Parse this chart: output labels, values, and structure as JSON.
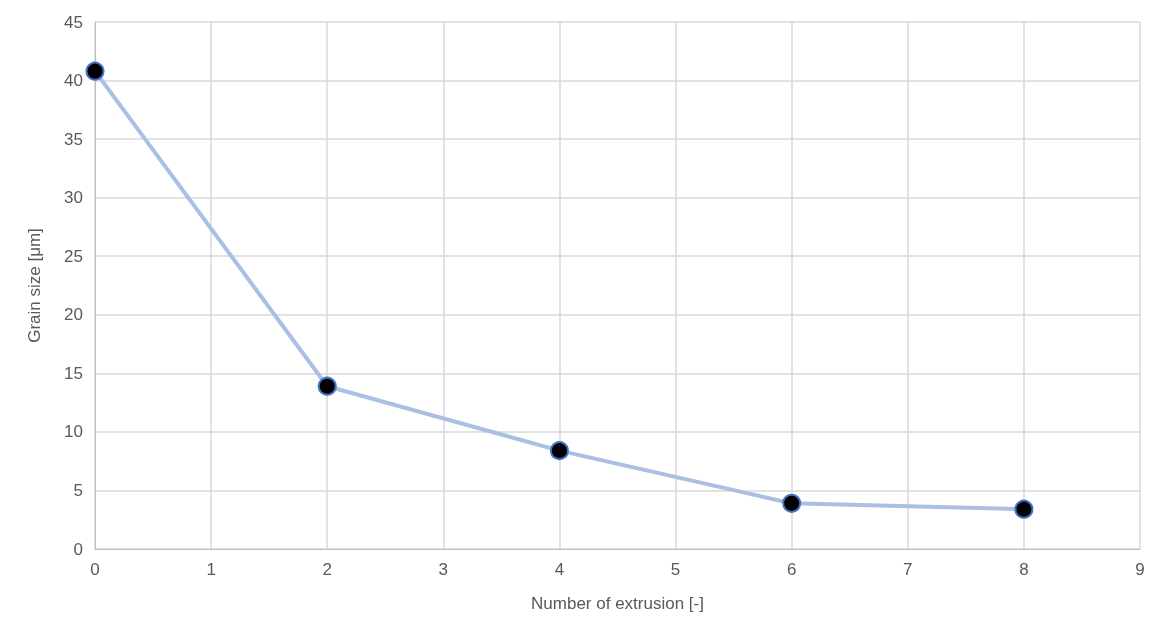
{
  "chart_data": {
    "type": "line",
    "xlabel": "Number of extrusion [-]",
    "ylabel": "Grain size [μm]",
    "x": [
      0,
      2,
      4,
      6,
      8
    ],
    "series": [
      {
        "color": "#a9bfe3",
        "values": [
          40.8,
          13.9,
          8.4,
          3.9,
          3.4
        ]
      }
    ],
    "xlim": [
      0,
      9
    ],
    "xticks": [
      0,
      1,
      2,
      3,
      4,
      5,
      6,
      7,
      8,
      9
    ],
    "ylim": [
      0,
      45
    ],
    "yticks": [
      0,
      5,
      10,
      15,
      20,
      25,
      30,
      35,
      40,
      45
    ],
    "grid": true,
    "marker": "circle",
    "line_style": "solid"
  }
}
